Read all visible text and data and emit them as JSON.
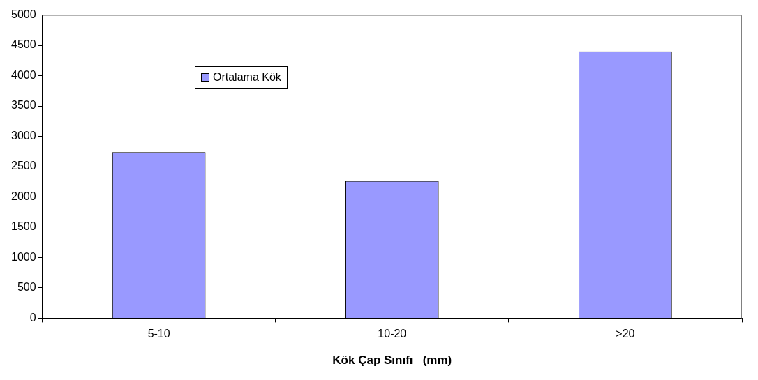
{
  "chart_data": {
    "type": "bar",
    "xlabel": "Kök Çap Sınıfı   (mm)",
    "categories": [
      "5-10",
      "10-20",
      ">20"
    ],
    "series": [
      {
        "name": "Ortalama Kök",
        "color": "#9999ff",
        "values": [
          2740,
          2260,
          4400
        ]
      }
    ],
    "ylim": [
      0,
      5000
    ],
    "yticks": [
      0,
      500,
      1000,
      1500,
      2000,
      2500,
      3000,
      3500,
      4000,
      4500,
      5000
    ],
    "grid": false,
    "legend": "top left"
  }
}
